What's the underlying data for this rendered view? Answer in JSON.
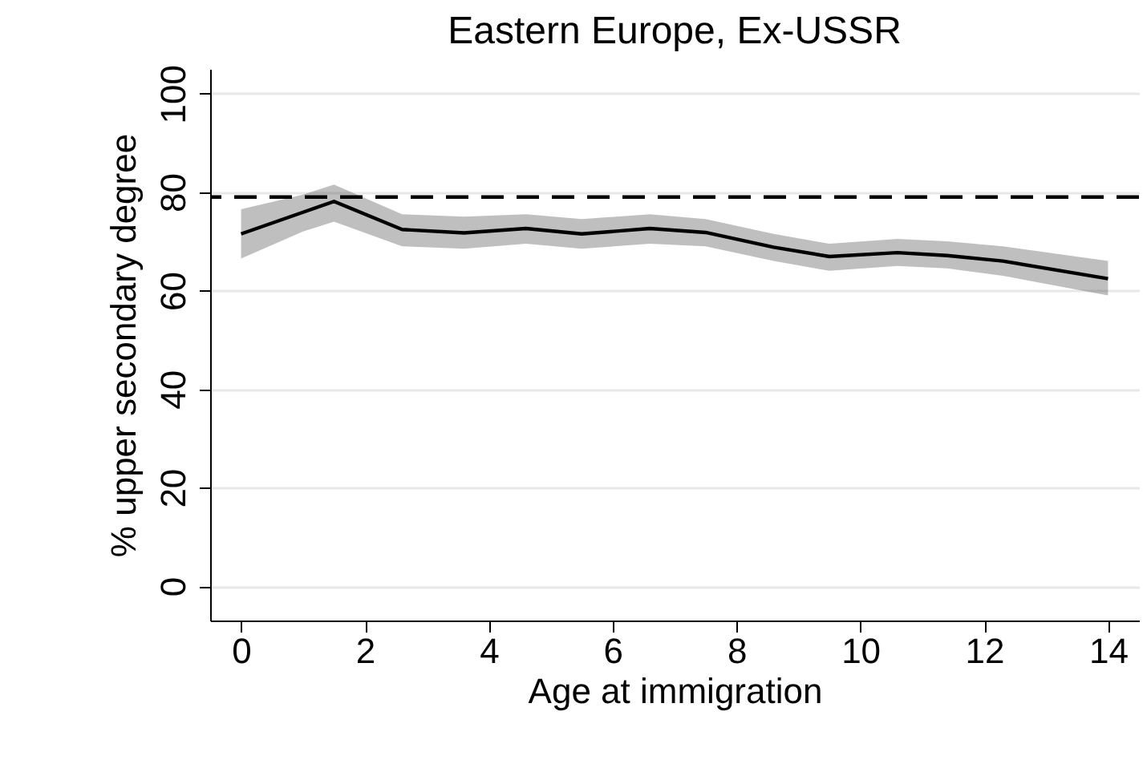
{
  "chart_data": {
    "type": "line",
    "title": "Eastern Europe, Ex-USSR",
    "xlabel": "Age at immigration",
    "ylabel": "% upper secondary degree",
    "xlim": [
      -0.5,
      14.5
    ],
    "xticks": [
      0,
      2,
      4,
      6,
      8,
      10,
      12,
      14
    ],
    "ylim": [
      -7,
      105
    ],
    "yticks": [
      0,
      20,
      40,
      60,
      80,
      100
    ],
    "grid": "y",
    "marker": "none",
    "series": [
      {
        "color": "#000000",
        "x": [
          0,
          1,
          1.5,
          2.6,
          3.6,
          4.6,
          5.5,
          6.6,
          7.5,
          8.6,
          9.5,
          10.6,
          11.4,
          12.3,
          14
        ],
        "values": [
          71.5,
          75.9,
          78.1,
          72.4,
          71.7,
          72.6,
          71.5,
          72.6,
          71.8,
          68.8,
          66.9,
          67.7,
          67.1,
          66,
          62.4
        ],
        "lower": [
          66.5,
          72,
          74,
          69,
          68.5,
          69.5,
          68.5,
          69.5,
          69,
          66,
          64,
          65,
          64.5,
          63,
          59
        ],
        "upper": [
          76.5,
          79.5,
          81.5,
          75.5,
          75,
          75.5,
          74.5,
          75.5,
          74.5,
          71.5,
          69.5,
          70.5,
          70,
          69,
          66
        ]
      }
    ],
    "ref_lines": [
      {
        "axis": "y",
        "value": 79,
        "line_style": "dashed",
        "color": "#000000"
      }
    ]
  }
}
